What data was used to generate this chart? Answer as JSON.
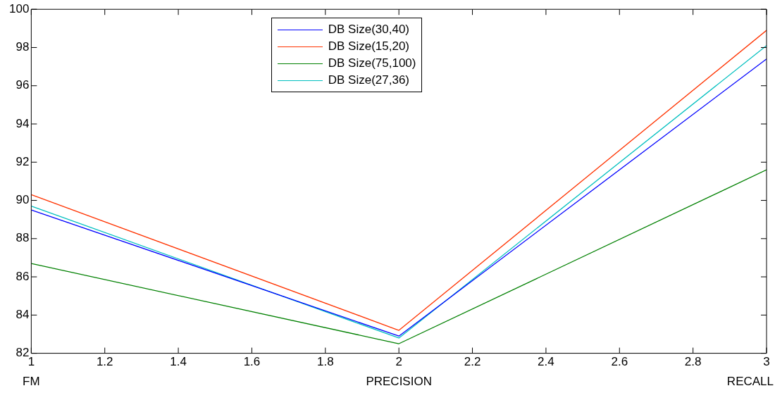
{
  "chart_data": {
    "type": "line",
    "x": [
      1,
      2,
      3
    ],
    "series": [
      {
        "name": "DB Size(30,40)",
        "color": "#0000ff",
        "values": [
          89.5,
          82.9,
          97.4
        ]
      },
      {
        "name": "DB Size(15,20)",
        "color": "#ff3300",
        "values": [
          90.3,
          83.2,
          98.9
        ]
      },
      {
        "name": "DB Size(75,100)",
        "color": "#008000",
        "values": [
          86.7,
          82.5,
          91.6
        ]
      },
      {
        "name": "DB Size(27,36)",
        "color": "#00bfbf",
        "values": [
          89.7,
          82.8,
          98.1
        ]
      }
    ],
    "xlim": [
      1,
      3
    ],
    "xticks": [
      1,
      1.2,
      1.4,
      1.6,
      1.8,
      2,
      2.2,
      2.4,
      2.6,
      2.8,
      3
    ],
    "ylim": [
      82,
      100
    ],
    "yticks": [
      82,
      84,
      86,
      88,
      90,
      92,
      94,
      96,
      98,
      100
    ],
    "annotations": [
      "FM",
      "PRECISION",
      "RECALL"
    ],
    "legend": "top",
    "grid": false,
    "marker": "none",
    "line_style": "solid"
  }
}
